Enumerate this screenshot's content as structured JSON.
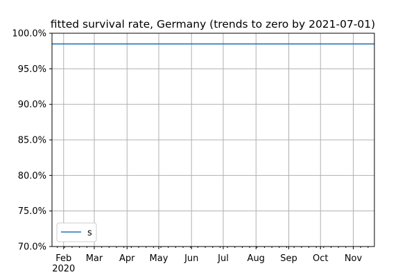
{
  "chart_data": {
    "type": "line",
    "title": "fitted survival rate, Germany (trends to zero by 2021-07-01)",
    "xlabel": "",
    "ylabel": "",
    "x_range": [
      "2020-01-21",
      "2020-11-21"
    ],
    "ylim": [
      0.7,
      1.0
    ],
    "y_ticks": [
      0.7,
      0.75,
      0.8,
      0.85,
      0.9,
      0.95,
      1.0
    ],
    "y_tick_labels": [
      "70.0%",
      "75.0%",
      "80.0%",
      "85.0%",
      "90.0%",
      "95.0%",
      "100.0%"
    ],
    "x_ticks": [
      "2020-02-01",
      "2020-03-01",
      "2020-04-01",
      "2020-05-01",
      "2020-06-01",
      "2020-07-01",
      "2020-08-01",
      "2020-09-01",
      "2020-10-01",
      "2020-11-01"
    ],
    "x_tick_labels": [
      "Feb",
      "Mar",
      "Apr",
      "May",
      "Jun",
      "Jul",
      "Aug",
      "Sep",
      "Oct",
      "Nov"
    ],
    "x_year_label": "2020",
    "grid": true,
    "legend_position": "lower-left",
    "series": [
      {
        "name": "s",
        "color": "#1f77b4",
        "x": [
          "2020-01-21",
          "2020-11-21"
        ],
        "y": [
          0.985,
          0.985
        ]
      }
    ]
  }
}
